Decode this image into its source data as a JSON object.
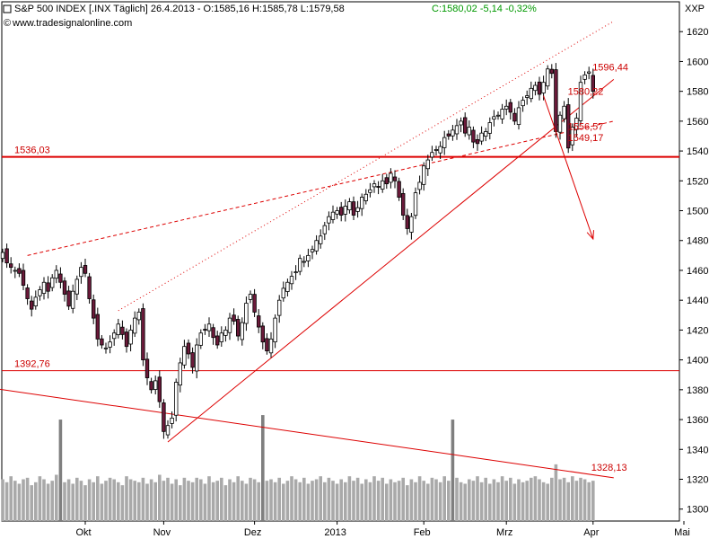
{
  "header": {
    "symbol_icon": "box-icon",
    "title": "S&P 500 INDEX [.INX  Täglich] 26.4.2013 - O:1585,16 H:1585,78 L:1579,58",
    "close_change": "C:1580,02 -5,14 -0,32%",
    "source": "www.tradesignalonline.com",
    "source_icon": "copyright-icon",
    "corner_label": "XXP"
  },
  "colors": {
    "up": "#ffffff",
    "down": "#6b1a3a",
    "candle_outline": "#000000",
    "trendline": "#dd0000",
    "volume": "#a9a9a9",
    "volume_dark": "#7f7f7f",
    "border": "#000000"
  },
  "chart_data": {
    "type": "candlestick",
    "title": "S&P 500 INDEX",
    "y_range": [
      1292,
      1640
    ],
    "y_ticks": [
      1300,
      1320,
      1340,
      1360,
      1380,
      1400,
      1420,
      1440,
      1460,
      1480,
      1500,
      1520,
      1540,
      1560,
      1580,
      1600,
      1620
    ],
    "x_ticks": [
      "Okt",
      "Nov",
      "Dez",
      "2013",
      "Feb",
      "Mrz",
      "Apr",
      "Mai"
    ],
    "horizontal_levels": [
      {
        "label": "1536,03",
        "value": 1536.03
      },
      {
        "label": "1392,76",
        "value": 1392.76
      }
    ],
    "price_labels": [
      {
        "label": "1596,44",
        "value": 1596.44
      },
      {
        "label": "1580,22",
        "value": 1580.22
      },
      {
        "label": "1556,57",
        "value": 1556.57
      },
      {
        "label": "1549,17",
        "value": 1549.17
      },
      {
        "label": "1328,13",
        "value": 1328.13
      }
    ],
    "closes": [
      1472,
      1465,
      1462,
      1460,
      1458,
      1450,
      1441,
      1434,
      1442,
      1447,
      1452,
      1446,
      1455,
      1460,
      1452,
      1444,
      1436,
      1446,
      1454,
      1462,
      1458,
      1441,
      1428,
      1414,
      1410,
      1408,
      1412,
      1418,
      1424,
      1417,
      1409,
      1420,
      1428,
      1432,
      1400,
      1388,
      1380,
      1386,
      1372,
      1352,
      1356,
      1361,
      1385,
      1398,
      1409,
      1404,
      1395,
      1410,
      1418,
      1420,
      1424,
      1415,
      1410,
      1418,
      1420,
      1428,
      1426,
      1416,
      1425,
      1438,
      1444,
      1432,
      1422,
      1412,
      1406,
      1414,
      1428,
      1440,
      1448,
      1452,
      1456,
      1459,
      1468,
      1466,
      1470,
      1474,
      1480,
      1483,
      1490,
      1496,
      1499,
      1500,
      1497,
      1503,
      1506,
      1497,
      1502,
      1509,
      1511,
      1514,
      1518,
      1516,
      1520,
      1518,
      1525,
      1520,
      1509,
      1497,
      1488,
      1496,
      1512,
      1519,
      1530,
      1534,
      1539,
      1541,
      1543,
      1549,
      1550,
      1554,
      1557,
      1560,
      1552,
      1556,
      1546,
      1545,
      1552,
      1553,
      1559,
      1563,
      1564,
      1568,
      1570,
      1566,
      1560,
      1569,
      1574,
      1577,
      1582,
      1584,
      1578,
      1586,
      1595,
      1592,
      1553,
      1564,
      1570,
      1542,
      1556,
      1562,
      1586,
      1591,
      1593,
      1580
    ],
    "volume": [
      1320,
      1318,
      1322,
      1319,
      1317,
      1320,
      1321,
      1316,
      1318,
      1322,
      1320,
      1317,
      1319,
      1323,
      1360,
      1318,
      1320,
      1317,
      1321,
      1319,
      1316,
      1320,
      1318,
      1322,
      1317,
      1319,
      1321,
      1320,
      1318,
      1316,
      1322,
      1320,
      1319,
      1318,
      1321,
      1317,
      1320,
      1318,
      1323,
      1319,
      1321,
      1317,
      1320,
      1316,
      1321,
      1319,
      1318,
      1321,
      1320,
      1317,
      1322,
      1318,
      1319,
      1321,
      1316,
      1320,
      1318,
      1322,
      1319,
      1317,
      1321,
      1320,
      1318,
      1363,
      1319,
      1320,
      1318,
      1321,
      1317,
      1319,
      1322,
      1320,
      1318,
      1321,
      1317,
      1319,
      1320,
      1322,
      1318,
      1321,
      1319,
      1317,
      1320,
      1318,
      1322,
      1319,
      1321,
      1317,
      1320,
      1318,
      1322,
      1319,
      1321,
      1317,
      1320,
      1318,
      1319,
      1321,
      1316,
      1320,
      1318,
      1322,
      1319,
      1317,
      1321,
      1320,
      1318,
      1322,
      1319,
      1360,
      1321,
      1318,
      1317,
      1320,
      1319,
      1322,
      1318,
      1321,
      1317,
      1320,
      1318,
      1322,
      1319,
      1321,
      1317,
      1320,
      1318,
      1319,
      1321,
      1322,
      1320,
      1318,
      1317,
      1321,
      1330,
      1320,
      1321,
      1318,
      1322,
      1319,
      1321,
      1320,
      1318,
      1319
    ],
    "trendlines": [
      {
        "from": [
          6,
          1470
        ],
        "to": [
          148,
          1560
        ],
        "style": "dashed"
      },
      {
        "from": [
          28,
          1433
        ],
        "to": [
          148,
          1627
        ],
        "style": "dotted"
      },
      {
        "from": [
          40,
          1345
        ],
        "to": [
          148,
          1588
        ],
        "style": "solid"
      },
      {
        "from": [
          -5,
          1382
        ],
        "to": [
          148,
          1321
        ],
        "style": "solid"
      }
    ],
    "arrow": {
      "from": [
        131,
        1577
      ],
      "to": [
        143,
        1481
      ]
    }
  }
}
